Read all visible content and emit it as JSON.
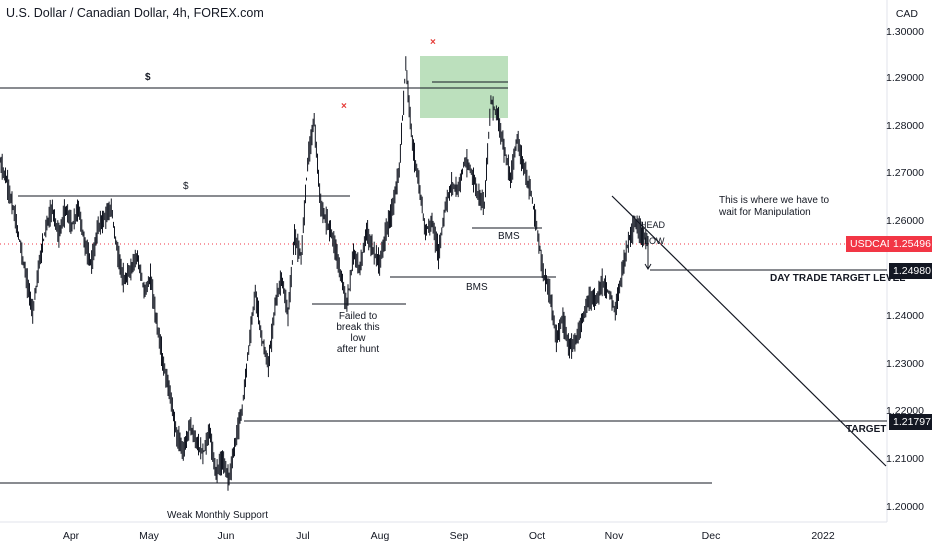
{
  "title": "U.S. Dollar / Canadian Dollar, 4h, FOREX.com",
  "currency": "CAD",
  "chart_data": {
    "type": "line",
    "symbol": "USDCAD",
    "timeframe": "4h",
    "y_axis_ticks": [
      "1.30000",
      "1.29000",
      "1.28000",
      "1.27000",
      "1.26000",
      "1.25000",
      "1.24000",
      "1.23000",
      "1.22000",
      "1.21000",
      "1.20000"
    ],
    "x_axis_ticks": [
      "Apr",
      "May",
      "Jun",
      "Jul",
      "Aug",
      "Sep",
      "Oct",
      "Nov",
      "Dec",
      "2022"
    ],
    "ylim": [
      1.195,
      1.305
    ],
    "series": [
      {
        "values": [
          1.272,
          1.268,
          1.262,
          1.255,
          1.247,
          1.24,
          1.25,
          1.258,
          1.262,
          1.256,
          1.262,
          1.258,
          1.262,
          1.254,
          1.25,
          1.258,
          1.26,
          1.262,
          1.252,
          1.246,
          1.249,
          1.252,
          1.244,
          1.247,
          1.237,
          1.228,
          1.222,
          1.213,
          1.21,
          1.215,
          1.212,
          1.209,
          1.214,
          1.205,
          1.208,
          1.204,
          1.212,
          1.219,
          1.232,
          1.244,
          1.234,
          1.228,
          1.241,
          1.247,
          1.239,
          1.256,
          1.251,
          1.272,
          1.281,
          1.262,
          1.259,
          1.255,
          1.248,
          1.241,
          1.252,
          1.249,
          1.257,
          1.253,
          1.25,
          1.257,
          1.262,
          1.27,
          1.293,
          1.276,
          1.267,
          1.257,
          1.259,
          1.252,
          1.262,
          1.267,
          1.266,
          1.272,
          1.27,
          1.265,
          1.263,
          1.285,
          1.282,
          1.275,
          1.268,
          1.277,
          1.271,
          1.266,
          1.258,
          1.248,
          1.244,
          1.234,
          1.238,
          1.232,
          1.234,
          1.238,
          1.243,
          1.242,
          1.246,
          1.244,
          1.24,
          1.248,
          1.255,
          1.2588,
          1.2565,
          1.255
        ]
      }
    ],
    "current_price": "1.25496",
    "horizontal_levels": [
      {
        "price": "1.24980",
        "label": "DAY TRADE TARGET LEVEL"
      },
      {
        "price": "1.21797",
        "label": "TARGET"
      }
    ],
    "annotations": [
      "$",
      "$",
      "Failed to\nbreak this\nlow\nafter hunt",
      "Weak Monthly Support",
      "BMS",
      "BMS",
      "This is where we have to",
      "wait for Manipulation",
      "HEAD",
      "LOW"
    ]
  },
  "colors": {
    "candles": "#131722",
    "current_price_line": "#f23645",
    "supply_zone": "#a5d6a7",
    "red_marker": "#e53935"
  }
}
